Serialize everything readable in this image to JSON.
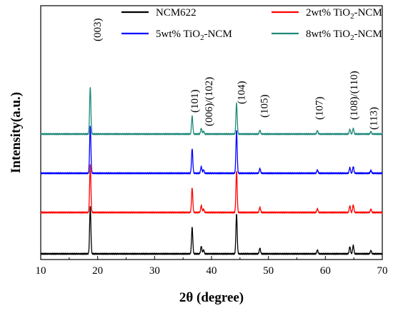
{
  "chart_data": {
    "type": "line",
    "xlabel": "2θ (degree)",
    "ylabel": "Intensity(a.u.)",
    "xlim": [
      10,
      70
    ],
    "xticks": [
      10,
      20,
      30,
      40,
      50,
      60,
      70
    ],
    "y_ticks_shown": false,
    "legend_placement": "top",
    "series": [
      {
        "name": "NCM622",
        "legend_main": "NCM622",
        "legend_sub": "",
        "legend_tail": "",
        "color": "#000000",
        "offset": 0,
        "peaks": [
          {
            "x": 18.7,
            "h": 100
          },
          {
            "x": 36.6,
            "h": 56
          },
          {
            "x": 38.2,
            "h": 16
          },
          {
            "x": 38.6,
            "h": 8
          },
          {
            "x": 44.4,
            "h": 85
          },
          {
            "x": 48.5,
            "h": 12
          },
          {
            "x": 58.6,
            "h": 8
          },
          {
            "x": 64.3,
            "h": 15
          },
          {
            "x": 64.9,
            "h": 18
          },
          {
            "x": 68.0,
            "h": 7
          }
        ]
      },
      {
        "name": "2wt% TiO2-NCM",
        "legend_main": "2wt% TiO",
        "legend_sub": "2",
        "legend_tail": "-NCM",
        "color": "#ff0000",
        "offset": 58,
        "peaks": [
          {
            "x": 18.7,
            "h": 100
          },
          {
            "x": 36.6,
            "h": 52
          },
          {
            "x": 38.2,
            "h": 15
          },
          {
            "x": 38.6,
            "h": 7
          },
          {
            "x": 44.4,
            "h": 88
          },
          {
            "x": 48.5,
            "h": 11
          },
          {
            "x": 58.6,
            "h": 8
          },
          {
            "x": 64.3,
            "h": 14
          },
          {
            "x": 64.9,
            "h": 16
          },
          {
            "x": 68.0,
            "h": 7
          }
        ]
      },
      {
        "name": "5wt% TiO2-NCM",
        "legend_main": "5wt% TiO",
        "legend_sub": "2",
        "legend_tail": "-NCM",
        "color": "#0000ff",
        "offset": 113,
        "peaks": [
          {
            "x": 18.7,
            "h": 100
          },
          {
            "x": 36.6,
            "h": 52
          },
          {
            "x": 38.2,
            "h": 14
          },
          {
            "x": 38.6,
            "h": 7
          },
          {
            "x": 44.4,
            "h": 90
          },
          {
            "x": 48.5,
            "h": 10
          },
          {
            "x": 58.6,
            "h": 7
          },
          {
            "x": 64.3,
            "h": 12
          },
          {
            "x": 64.9,
            "h": 14
          },
          {
            "x": 68.0,
            "h": 6
          }
        ]
      },
      {
        "name": "8wt% TiO2-NCM",
        "legend_main": "8wt% TiO",
        "legend_sub": "2",
        "legend_tail": "-NCM",
        "color": "#1f8a7a",
        "offset": 168,
        "peaks": [
          {
            "x": 18.7,
            "h": 100
          },
          {
            "x": 36.6,
            "h": 38
          },
          {
            "x": 38.2,
            "h": 12
          },
          {
            "x": 38.6,
            "h": 6
          },
          {
            "x": 44.4,
            "h": 65
          },
          {
            "x": 48.5,
            "h": 8
          },
          {
            "x": 58.6,
            "h": 7
          },
          {
            "x": 64.3,
            "h": 10
          },
          {
            "x": 64.9,
            "h": 12
          },
          {
            "x": 68.0,
            "h": 5
          }
        ]
      }
    ],
    "annotations": [
      {
        "text": "(003)",
        "x": 19.9
      },
      {
        "text": "(101)",
        "x": 37.0
      },
      {
        "text": "(006)/(102)",
        "x": 39.5
      },
      {
        "text": "(104)",
        "x": 45.2
      },
      {
        "text": "(105)",
        "x": 49.2
      },
      {
        "text": "(107)",
        "x": 58.9
      },
      {
        "text": "(108)/(110)",
        "x": 65.0
      },
      {
        "text": "(113)",
        "x": 68.4
      }
    ]
  }
}
